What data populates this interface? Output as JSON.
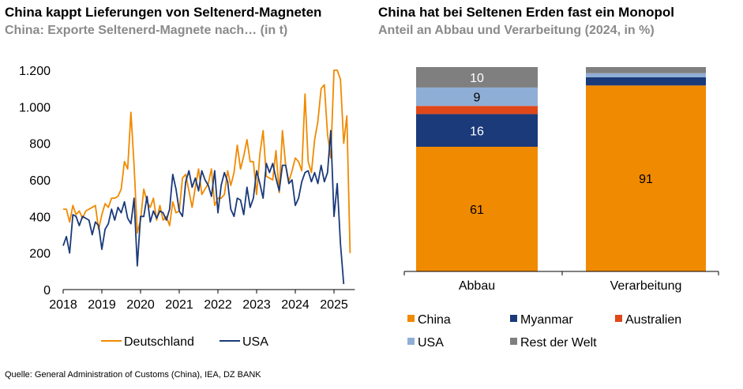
{
  "left": {
    "title": "China kappt Lieferungen von Seltenerd-Magneten",
    "subtitle": "China: Exporte Seltenerd-Magnete nach… (in t)"
  },
  "right": {
    "title": "China hat bei Seltenen Erden fast ein Monopol",
    "subtitle": "Anteil an Abbau und Verarbeitung (2024, in %)"
  },
  "source": "Quelle: General Administration of Customs (China), IEA, DZ BANK",
  "colors": {
    "orange": "#F08A00",
    "navy": "#1A3A7A",
    "red": "#E0481A",
    "lightblue": "#8FAED6",
    "gray": "#7F7F7F"
  },
  "chart_data": [
    {
      "type": "line",
      "title": "China kappt Lieferungen von Seltenerd-Magneten",
      "subtitle": "China: Exporte Seltenerd-Magnete nach… (in t)",
      "xlabel": "",
      "ylabel": "",
      "ylim": [
        0,
        1200
      ],
      "yticks": [
        0,
        200,
        400,
        600,
        800,
        1000,
        1200
      ],
      "ytick_labels": [
        "0",
        "200",
        "400",
        "600",
        "800",
        "1.000",
        "1.200"
      ],
      "xticks": [
        "2018",
        "2019",
        "2020",
        "2021",
        "2022",
        "2023",
        "2024",
        "2025"
      ],
      "x_start": 2018,
      "x_step_months": 1,
      "legend": "bottom",
      "series": [
        {
          "name": "Deutschland",
          "color": "#F08A00",
          "values": [
            440,
            440,
            370,
            460,
            410,
            430,
            390,
            430,
            440,
            450,
            460,
            330,
            410,
            470,
            450,
            500,
            500,
            510,
            550,
            700,
            660,
            970,
            680,
            310,
            380,
            550,
            480,
            450,
            500,
            380,
            460,
            380,
            400,
            350,
            480,
            420,
            430,
            610,
            630,
            540,
            450,
            560,
            660,
            520,
            550,
            580,
            660,
            460,
            500,
            500,
            520,
            650,
            570,
            640,
            790,
            660,
            730,
            820,
            700,
            700,
            520,
            740,
            870,
            620,
            610,
            600,
            760,
            530,
            870,
            680,
            590,
            650,
            720,
            700,
            650,
            1070,
            700,
            640,
            820,
            920,
            1100,
            1120,
            850,
            720,
            1200,
            1200,
            1150,
            800,
            950,
            200
          ]
        },
        {
          "name": "USA",
          "color": "#1A3A7A",
          "values": [
            240,
            290,
            200,
            410,
            400,
            350,
            400,
            390,
            380,
            300,
            370,
            350,
            220,
            330,
            360,
            440,
            380,
            450,
            420,
            480,
            390,
            360,
            500,
            130,
            400,
            400,
            510,
            370,
            430,
            390,
            430,
            420,
            380,
            440,
            630,
            550,
            430,
            400,
            590,
            650,
            560,
            610,
            540,
            650,
            600,
            570,
            510,
            650,
            420,
            570,
            640,
            590,
            440,
            400,
            500,
            490,
            410,
            560,
            450,
            500,
            650,
            580,
            500,
            690,
            640,
            690,
            610,
            540,
            680,
            680,
            580,
            600,
            460,
            500,
            590,
            640,
            650,
            590,
            640,
            580,
            680,
            590,
            640,
            870,
            400,
            580,
            250,
            30
          ]
        }
      ]
    },
    {
      "type": "bar",
      "stacked": true,
      "title": "China hat bei Seltenen Erden fast ein Monopol",
      "subtitle": "Anteil an Abbau und Verarbeitung (2024, in %)",
      "categories": [
        "Abbau",
        "Verarbeitung"
      ],
      "ylim": [
        0,
        100
      ],
      "legend": "bottom",
      "series": [
        {
          "name": "China",
          "color": "#F08A00",
          "values": [
            61,
            91
          ],
          "labels": [
            "61",
            "91"
          ]
        },
        {
          "name": "Myanmar",
          "color": "#1A3A7A",
          "values": [
            16,
            4
          ],
          "labels": [
            "16",
            ""
          ]
        },
        {
          "name": "Australien",
          "color": "#E0481A",
          "values": [
            4,
            0
          ],
          "labels": [
            "",
            ""
          ]
        },
        {
          "name": "USA",
          "color": "#8FAED6",
          "values": [
            9,
            2
          ],
          "labels": [
            "9",
            ""
          ]
        },
        {
          "name": "Rest der Welt",
          "color": "#7F7F7F",
          "values": [
            10,
            3
          ],
          "labels": [
            "10",
            ""
          ]
        }
      ]
    }
  ]
}
